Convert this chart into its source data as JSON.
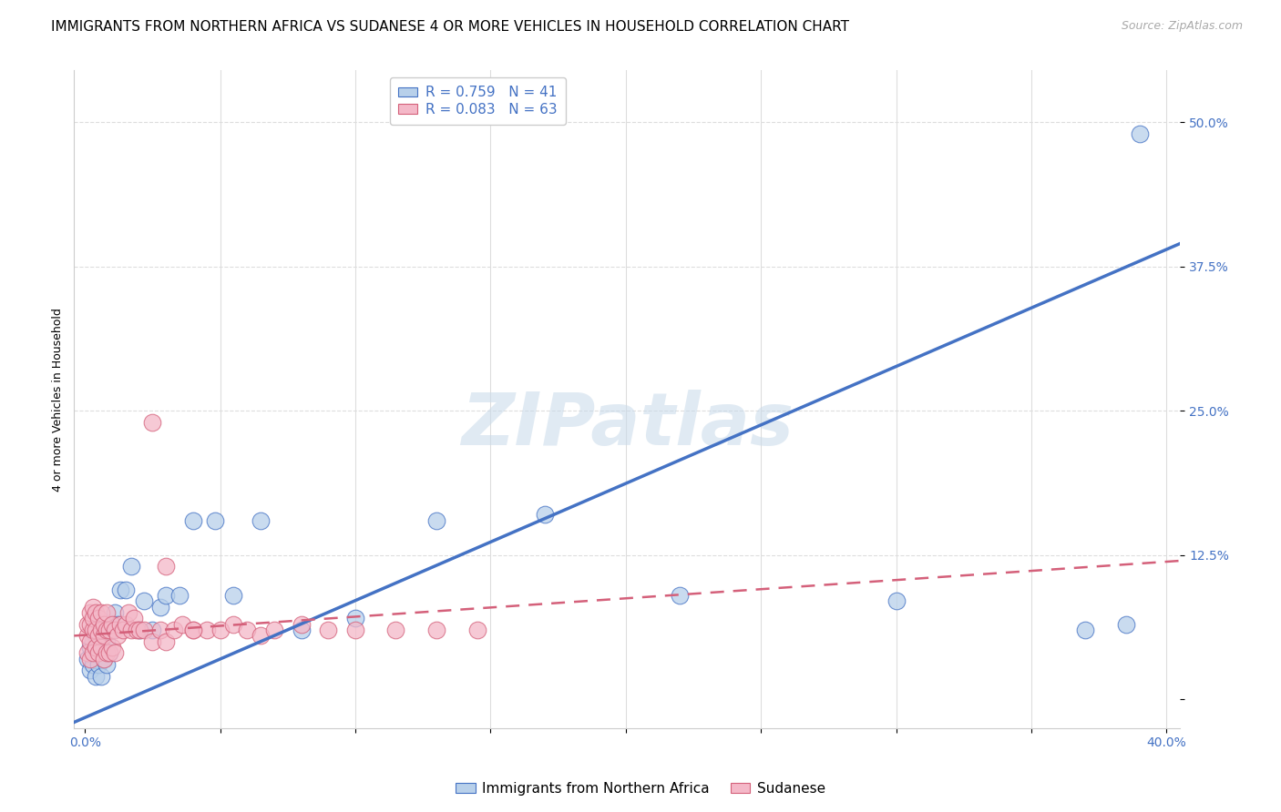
{
  "title": "IMMIGRANTS FROM NORTHERN AFRICA VS SUDANESE 4 OR MORE VEHICLES IN HOUSEHOLD CORRELATION CHART",
  "source": "Source: ZipAtlas.com",
  "ylabel": "4 or more Vehicles in Household",
  "xlim": [
    -0.004,
    0.405
  ],
  "ylim": [
    -0.025,
    0.545
  ],
  "yticks": [
    0.0,
    0.125,
    0.25,
    0.375,
    0.5
  ],
  "ytick_labels": [
    "",
    "12.5%",
    "25.0%",
    "37.5%",
    "50.0%"
  ],
  "xticks": [
    0.0,
    0.05,
    0.1,
    0.15,
    0.2,
    0.25,
    0.3,
    0.35,
    0.4
  ],
  "xtick_labels": [
    "0.0%",
    "",
    "",
    "",
    "",
    "",
    "",
    "",
    "40.0%"
  ],
  "blue_R": 0.759,
  "blue_N": 41,
  "pink_R": 0.083,
  "pink_N": 63,
  "legend_label_blue": "Immigrants from Northern Africa",
  "legend_label_pink": "Sudanese",
  "watermark": "ZIPatlas",
  "blue_color": "#b8d0ea",
  "blue_line_color": "#4472c4",
  "pink_color": "#f4b8c8",
  "pink_line_color": "#d4607a",
  "blue_scatter_x": [
    0.001,
    0.002,
    0.002,
    0.003,
    0.003,
    0.004,
    0.004,
    0.005,
    0.005,
    0.006,
    0.006,
    0.007,
    0.007,
    0.008,
    0.008,
    0.009,
    0.01,
    0.011,
    0.012,
    0.013,
    0.015,
    0.017,
    0.02,
    0.022,
    0.025,
    0.028,
    0.03,
    0.035,
    0.04,
    0.048,
    0.055,
    0.065,
    0.08,
    0.1,
    0.13,
    0.17,
    0.22,
    0.3,
    0.37,
    0.385,
    0.39
  ],
  "blue_scatter_y": [
    0.035,
    0.025,
    0.045,
    0.03,
    0.05,
    0.02,
    0.055,
    0.03,
    0.045,
    0.02,
    0.06,
    0.035,
    0.055,
    0.03,
    0.05,
    0.04,
    0.06,
    0.075,
    0.065,
    0.095,
    0.095,
    0.115,
    0.06,
    0.085,
    0.06,
    0.08,
    0.09,
    0.09,
    0.155,
    0.155,
    0.09,
    0.155,
    0.06,
    0.07,
    0.155,
    0.16,
    0.09,
    0.085,
    0.06,
    0.065,
    0.49
  ],
  "pink_scatter_x": [
    0.001,
    0.001,
    0.001,
    0.002,
    0.002,
    0.002,
    0.002,
    0.003,
    0.003,
    0.003,
    0.003,
    0.004,
    0.004,
    0.004,
    0.005,
    0.005,
    0.005,
    0.006,
    0.006,
    0.006,
    0.007,
    0.007,
    0.007,
    0.008,
    0.008,
    0.008,
    0.009,
    0.009,
    0.01,
    0.01,
    0.011,
    0.011,
    0.012,
    0.013,
    0.014,
    0.015,
    0.016,
    0.017,
    0.018,
    0.019,
    0.02,
    0.022,
    0.025,
    0.028,
    0.03,
    0.033,
    0.036,
    0.04,
    0.045,
    0.05,
    0.055,
    0.06,
    0.065,
    0.07,
    0.08,
    0.09,
    0.1,
    0.115,
    0.13,
    0.145,
    0.025,
    0.03,
    0.04
  ],
  "pink_scatter_y": [
    0.04,
    0.055,
    0.065,
    0.035,
    0.05,
    0.065,
    0.075,
    0.04,
    0.06,
    0.07,
    0.08,
    0.045,
    0.06,
    0.075,
    0.04,
    0.055,
    0.07,
    0.045,
    0.06,
    0.075,
    0.035,
    0.055,
    0.065,
    0.04,
    0.06,
    0.075,
    0.04,
    0.06,
    0.045,
    0.065,
    0.04,
    0.06,
    0.055,
    0.065,
    0.06,
    0.065,
    0.075,
    0.06,
    0.07,
    0.06,
    0.06,
    0.06,
    0.05,
    0.06,
    0.05,
    0.06,
    0.065,
    0.06,
    0.06,
    0.06,
    0.065,
    0.06,
    0.055,
    0.06,
    0.065,
    0.06,
    0.06,
    0.06,
    0.06,
    0.06,
    0.24,
    0.115,
    0.06
  ],
  "blue_line_x0": -0.004,
  "blue_line_x1": 0.405,
  "blue_line_y0": -0.02,
  "blue_line_y1": 0.395,
  "pink_line_x0": -0.004,
  "pink_line_x1": 0.405,
  "pink_line_y0": 0.055,
  "pink_line_y1": 0.12,
  "background_color": "#ffffff",
  "grid_color": "#dddddd",
  "title_fontsize": 11,
  "axis_label_fontsize": 9,
  "tick_fontsize": 10,
  "legend_fontsize": 11
}
